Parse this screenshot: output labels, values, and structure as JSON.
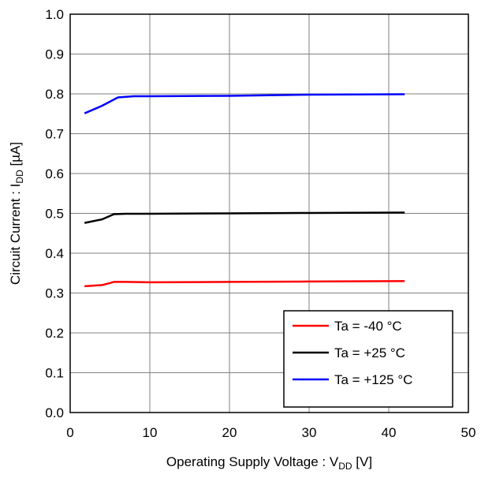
{
  "chart_data": {
    "type": "line",
    "xlabel": "Operating Supply Voltage : V",
    "xlabel_sub": "DD",
    "xlabel_unit": " [V]",
    "ylabel": "Circuit Current : I",
    "ylabel_sub": "DD",
    "ylabel_unit": " [µA]",
    "xlim": [
      0,
      50
    ],
    "ylim": [
      0.0,
      1.0
    ],
    "xticks": [
      "0",
      "10",
      "20",
      "30",
      "40",
      "50"
    ],
    "yticks": [
      "0.0",
      "0.1",
      "0.2",
      "0.3",
      "0.4",
      "0.5",
      "0.6",
      "0.7",
      "0.8",
      "0.9",
      "1.0"
    ],
    "grid": true,
    "legend_position": "bottom-right",
    "series": [
      {
        "name": "Ta = -40 °C",
        "color": "#ff0000",
        "x": [
          1.8,
          4,
          5.5,
          7,
          10,
          20,
          30,
          42
        ],
        "y": [
          0.317,
          0.32,
          0.328,
          0.328,
          0.327,
          0.328,
          0.329,
          0.33
        ]
      },
      {
        "name": "Ta = +25 °C",
        "color": "#000000",
        "x": [
          1.8,
          4,
          5.5,
          7,
          10,
          20,
          30,
          42
        ],
        "y": [
          0.476,
          0.485,
          0.498,
          0.499,
          0.499,
          0.5,
          0.501,
          0.502
        ]
      },
      {
        "name": "Ta = +125 °C",
        "color": "#0000ff",
        "x": [
          1.8,
          4,
          6,
          8,
          10,
          20,
          30,
          42
        ],
        "y": [
          0.751,
          0.77,
          0.791,
          0.794,
          0.794,
          0.795,
          0.798,
          0.799
        ]
      }
    ]
  }
}
